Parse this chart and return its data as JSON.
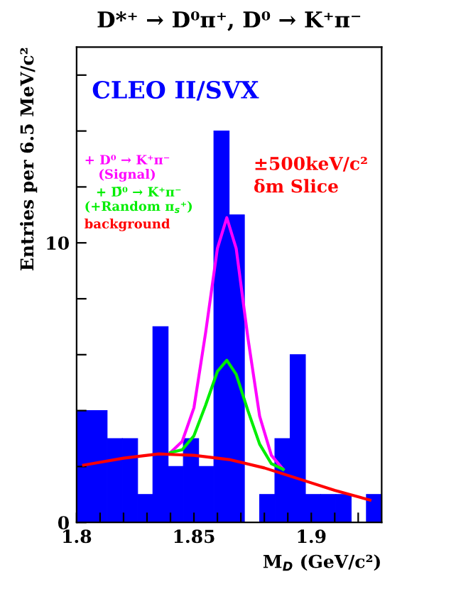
{
  "chart_data": {
    "type": "histogram",
    "title": "D*⁺ → D⁰π⁺, D⁰ → K⁺π⁻",
    "xlabel": "M$_{D}$ (GeV/c²)",
    "ylabel": "Entries per 6.5 MeV/c²",
    "bins": [
      1.8,
      1.8065,
      1.813,
      1.8195,
      1.826,
      1.8325,
      1.839,
      1.8455,
      1.852,
      1.8585,
      1.865,
      1.8715,
      1.878,
      1.8845,
      1.891,
      1.8975,
      1.904,
      1.9105,
      1.917,
      1.9235,
      1.93
    ],
    "values": [
      4,
      4,
      3,
      3,
      1,
      7,
      2,
      3,
      2,
      14,
      11,
      0,
      1,
      3,
      6,
      1,
      1,
      1,
      0,
      1
    ],
    "color": "#0000ff",
    "series": [
      {
        "type": "line",
        "name": "+ D⁰ → K⁺π⁻\n(Signal)",
        "color": "#ff00ff",
        "x": [
          1.84,
          1.845,
          1.85,
          1.855,
          1.86,
          1.864,
          1.868,
          1.873,
          1.878,
          1.883,
          1.888
        ],
        "values": [
          2.5,
          2.9,
          4.1,
          6.8,
          9.8,
          10.9,
          9.8,
          6.6,
          3.8,
          2.4,
          1.9
        ]
      },
      {
        "type": "line",
        "name": "+ D̄⁰ → K⁺π⁻\n(+Random π$_{s}$⁺)",
        "color": "#00ee00",
        "x": [
          1.84,
          1.845,
          1.85,
          1.855,
          1.86,
          1.864,
          1.868,
          1.873,
          1.878,
          1.883,
          1.888
        ],
        "values": [
          2.5,
          2.6,
          3.1,
          4.2,
          5.4,
          5.8,
          5.3,
          4.0,
          2.8,
          2.1,
          1.9
        ]
      },
      {
        "type": "line",
        "name": "background",
        "color": "#ff0000",
        "x": [
          1.803,
          1.82,
          1.835,
          1.85,
          1.865,
          1.88,
          1.895,
          1.91,
          1.925
        ],
        "values": [
          2.05,
          2.3,
          2.45,
          2.4,
          2.25,
          1.95,
          1.55,
          1.15,
          0.8
        ]
      }
    ],
    "annotations": [
      "CLEO II/SVX",
      "±500keV/c²\nδm Slice"
    ],
    "xlim": [
      1.8,
      1.93
    ],
    "xticks": [
      1.8,
      {
        "value": 1.81,
        "label": null
      },
      {
        "value": 1.82,
        "label": null
      },
      {
        "value": 1.83,
        "label": null
      },
      {
        "value": 1.84,
        "label": null
      },
      1.85,
      {
        "value": 1.86,
        "label": null
      },
      {
        "value": 1.87,
        "label": null
      },
      {
        "value": 1.88,
        "label": null
      },
      {
        "value": 1.89,
        "label": null
      },
      1.9,
      {
        "value": 1.91,
        "label": null
      },
      {
        "value": 1.92,
        "label": null
      }
    ],
    "ylim": [
      0,
      17
    ],
    "yticks": [
      0,
      {
        "value": 2,
        "label": null
      },
      {
        "value": 4,
        "label": null
      },
      {
        "value": 6,
        "label": null
      },
      {
        "value": 8,
        "label": null
      },
      10,
      {
        "value": 12,
        "label": null
      },
      {
        "value": 14,
        "label": null
      },
      {
        "value": 16,
        "label": null
      }
    ],
    "legend": "top left",
    "grid": false
  }
}
